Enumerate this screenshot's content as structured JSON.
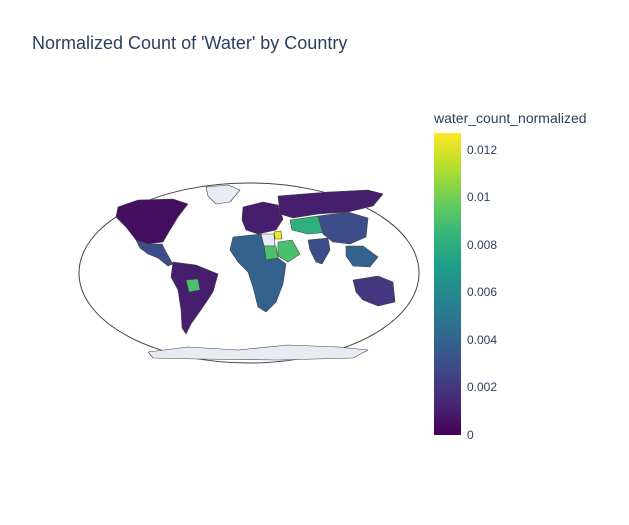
{
  "chart_data": {
    "type": "choropleth",
    "title": "Normalized Count of 'Water' by Country",
    "projection": "natural earth",
    "colorscale": "viridis",
    "colorbar": {
      "title": "water_count_normalized",
      "range": [
        0,
        0.0127
      ],
      "ticks": [
        "0",
        "0.002",
        "0.004",
        "0.006",
        "0.008",
        "0.01",
        "0.012"
      ]
    },
    "regions": [
      {
        "name": "North America",
        "value": 0.0005
      },
      {
        "name": "Greenland",
        "value": null
      },
      {
        "name": "Mexico / Central America",
        "value": 0.003
      },
      {
        "name": "South America",
        "value": 0.001
      },
      {
        "name": "Bolivia",
        "value": 0.009
      },
      {
        "name": "Europe",
        "value": 0.001
      },
      {
        "name": "Russia",
        "value": 0.001
      },
      {
        "name": "Kazakhstan",
        "value": 0.008
      },
      {
        "name": "Saudi Arabia",
        "value": 0.009
      },
      {
        "name": "Jordan",
        "value": 0.0125
      },
      {
        "name": "Egypt",
        "value": null
      },
      {
        "name": "Sudan",
        "value": 0.009
      },
      {
        "name": "Africa",
        "value": 0.004
      },
      {
        "name": "India",
        "value": 0.003
      },
      {
        "name": "China",
        "value": 0.003
      },
      {
        "name": "Southeast Asia",
        "value": 0.004
      },
      {
        "name": "Australia",
        "value": 0.002
      },
      {
        "name": "Antarctica",
        "value": null
      }
    ]
  },
  "colors": {
    "nodata": "#e5ecf6",
    "border": "#444444",
    "text": "#2a3f5f"
  }
}
